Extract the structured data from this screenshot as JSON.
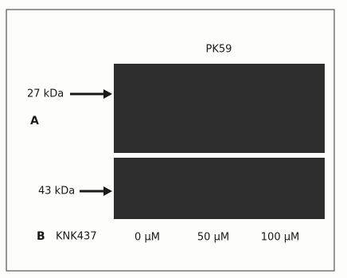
{
  "figure": {
    "title": "PK59",
    "panel_a": {
      "letter": "A",
      "marker": "27 kDa"
    },
    "panel_b": {
      "letter": "B",
      "marker": "43 kDa",
      "treatment": "KNK437"
    },
    "lanes": [
      "0 μM",
      "50 μM",
      "100 μM"
    ]
  }
}
